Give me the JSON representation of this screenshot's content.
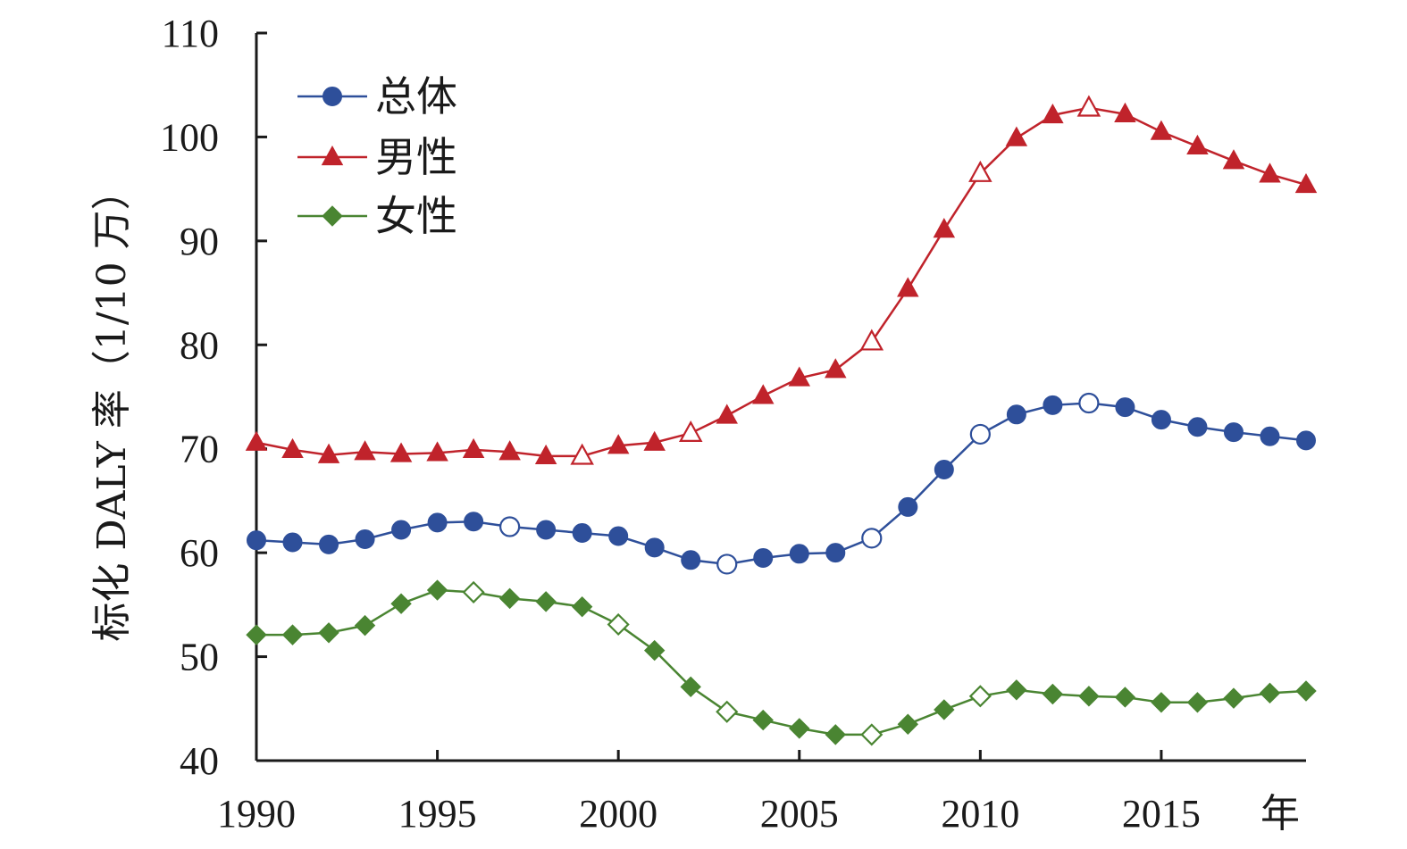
{
  "chart_data": {
    "type": "line",
    "title": "",
    "xlabel": "年",
    "ylabel": "标化 DALY 率（1/10 万）",
    "x": [
      1990,
      1991,
      1992,
      1993,
      1994,
      1995,
      1996,
      1997,
      1998,
      1999,
      2000,
      2001,
      2002,
      2003,
      2004,
      2005,
      2006,
      2007,
      2008,
      2009,
      2010,
      2011,
      2012,
      2013,
      2014,
      2015,
      2016,
      2017,
      2018,
      2019
    ],
    "x_ticks": [
      "1990",
      "1995",
      "2000",
      "2005",
      "2010",
      "2015"
    ],
    "xlim": [
      1990,
      2019
    ],
    "ylim": [
      40,
      110
    ],
    "y_ticks": [
      "40",
      "50",
      "60",
      "70",
      "80",
      "90",
      "100",
      "110"
    ],
    "grid": false,
    "legend_position": "top-left",
    "series": [
      {
        "name": "总体",
        "marker": "circle",
        "color": "#2e4f9a",
        "values": [
          61.2,
          61.0,
          60.8,
          61.3,
          62.2,
          62.9,
          63.0,
          62.5,
          62.2,
          61.9,
          61.6,
          60.5,
          59.3,
          58.9,
          59.5,
          59.9,
          60.0,
          61.4,
          64.4,
          68.0,
          71.4,
          73.3,
          74.2,
          74.4,
          74.0,
          72.8,
          72.1,
          71.6,
          71.2,
          70.8
        ],
        "hollow": [
          false,
          false,
          false,
          false,
          false,
          false,
          false,
          true,
          false,
          false,
          false,
          false,
          false,
          true,
          false,
          false,
          false,
          true,
          false,
          false,
          true,
          false,
          false,
          true,
          false,
          false,
          false,
          false,
          false,
          false
        ]
      },
      {
        "name": "男性",
        "marker": "triangle",
        "color": "#c0232b",
        "values": [
          70.6,
          69.9,
          69.4,
          69.7,
          69.5,
          69.6,
          69.9,
          69.7,
          69.3,
          69.3,
          70.3,
          70.6,
          71.5,
          73.2,
          75.1,
          76.8,
          77.6,
          80.3,
          85.4,
          91.1,
          96.5,
          99.9,
          102.1,
          102.8,
          102.2,
          100.5,
          99.1,
          97.7,
          96.4,
          95.4
        ],
        "hollow": [
          false,
          false,
          false,
          false,
          false,
          false,
          false,
          false,
          false,
          true,
          false,
          false,
          true,
          false,
          false,
          false,
          false,
          true,
          false,
          false,
          true,
          false,
          false,
          true,
          false,
          false,
          false,
          false,
          false,
          false
        ]
      },
      {
        "name": "女性",
        "marker": "diamond",
        "color": "#4a8532",
        "values": [
          52.1,
          52.1,
          52.3,
          53.0,
          55.1,
          56.4,
          56.2,
          55.6,
          55.3,
          54.8,
          53.1,
          50.6,
          47.1,
          44.7,
          43.9,
          43.1,
          42.5,
          42.5,
          43.5,
          44.9,
          46.2,
          46.8,
          46.4,
          46.2,
          46.1,
          45.6,
          45.6,
          46.0,
          46.5,
          46.7
        ],
        "hollow": [
          false,
          false,
          false,
          false,
          false,
          false,
          true,
          false,
          false,
          false,
          true,
          false,
          false,
          true,
          false,
          false,
          false,
          true,
          false,
          false,
          true,
          false,
          false,
          false,
          false,
          false,
          false,
          false,
          false,
          false
        ]
      }
    ]
  }
}
